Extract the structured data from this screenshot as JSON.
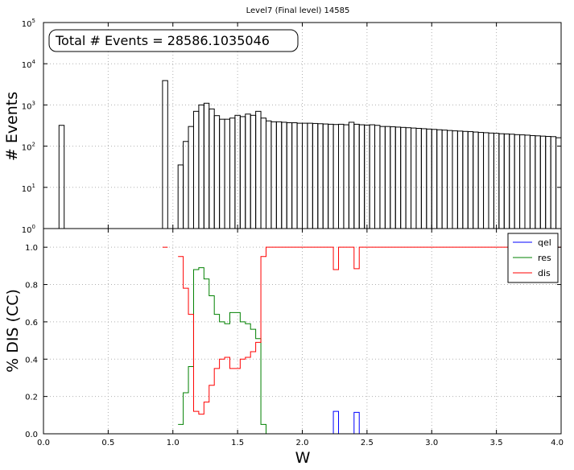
{
  "figure_title": "Level7 (Final level) 14585",
  "chart_data": [
    {
      "type": "histogram",
      "ylabel": "# Events",
      "yscale": "log",
      "ylim": [
        1,
        100000
      ],
      "xlim": [
        0,
        4
      ],
      "grid": true,
      "annotation": "Total # Events = 28586.1035046",
      "y_tick_labels": [
        {
          "base": "10",
          "exp": "0"
        },
        {
          "base": "10",
          "exp": "1"
        },
        {
          "base": "10",
          "exp": "2"
        },
        {
          "base": "10",
          "exp": "3"
        },
        {
          "base": "10",
          "exp": "4"
        },
        {
          "base": "10",
          "exp": "5"
        }
      ],
      "bin_width": 0.04,
      "bins": [
        [
          0.12,
          320
        ],
        [
          0.92,
          3900
        ],
        [
          1.04,
          35
        ],
        [
          1.08,
          130
        ],
        [
          1.12,
          300
        ],
        [
          1.16,
          700
        ],
        [
          1.2,
          1000
        ],
        [
          1.24,
          1100
        ],
        [
          1.28,
          800
        ],
        [
          1.32,
          550
        ],
        [
          1.36,
          450
        ],
        [
          1.4,
          450
        ],
        [
          1.44,
          480
        ],
        [
          1.48,
          560
        ],
        [
          1.52,
          520
        ],
        [
          1.56,
          600
        ],
        [
          1.6,
          560
        ],
        [
          1.64,
          700
        ],
        [
          1.68,
          480
        ],
        [
          1.72,
          410
        ],
        [
          1.76,
          390
        ],
        [
          1.8,
          390
        ],
        [
          1.84,
          380
        ],
        [
          1.88,
          370
        ],
        [
          1.92,
          370
        ],
        [
          1.96,
          360
        ],
        [
          2.0,
          360
        ],
        [
          2.04,
          360
        ],
        [
          2.08,
          355
        ],
        [
          2.12,
          350
        ],
        [
          2.16,
          345
        ],
        [
          2.2,
          340
        ],
        [
          2.24,
          335
        ],
        [
          2.28,
          340
        ],
        [
          2.32,
          330
        ],
        [
          2.36,
          380
        ],
        [
          2.4,
          340
        ],
        [
          2.44,
          330
        ],
        [
          2.48,
          325
        ],
        [
          2.52,
          330
        ],
        [
          2.56,
          320
        ],
        [
          2.6,
          300
        ],
        [
          2.64,
          300
        ],
        [
          2.68,
          295
        ],
        [
          2.72,
          290
        ],
        [
          2.76,
          285
        ],
        [
          2.8,
          280
        ],
        [
          2.84,
          275
        ],
        [
          2.88,
          270
        ],
        [
          2.92,
          265
        ],
        [
          2.96,
          260
        ],
        [
          3.0,
          255
        ],
        [
          3.04,
          250
        ],
        [
          3.08,
          245
        ],
        [
          3.12,
          240
        ],
        [
          3.16,
          235
        ],
        [
          3.2,
          232
        ],
        [
          3.24,
          228
        ],
        [
          3.28,
          225
        ],
        [
          3.32,
          220
        ],
        [
          3.36,
          215
        ],
        [
          3.4,
          212
        ],
        [
          3.44,
          208
        ],
        [
          3.48,
          205
        ],
        [
          3.52,
          200
        ],
        [
          3.56,
          198
        ],
        [
          3.6,
          195
        ],
        [
          3.64,
          190
        ],
        [
          3.68,
          188
        ],
        [
          3.72,
          185
        ],
        [
          3.76,
          180
        ],
        [
          3.8,
          178
        ],
        [
          3.84,
          175
        ],
        [
          3.88,
          172
        ],
        [
          3.92,
          170
        ],
        [
          3.96,
          160
        ]
      ]
    },
    {
      "type": "step",
      "xlabel": "W",
      "ylabel": "% DIS (CC)",
      "xlim": [
        0,
        4
      ],
      "ylim": [
        0,
        1.1
      ],
      "grid": true,
      "legend_position": "top-right",
      "x_tick_labels": [
        "0.0",
        "0.5",
        "1.0",
        "1.5",
        "2.0",
        "2.5",
        "3.0",
        "3.5",
        "4.0"
      ],
      "y_tick_labels": [
        "0.0",
        "0.2",
        "0.4",
        "0.6",
        "0.8",
        "1.0"
      ],
      "series": [
        {
          "name": "qel",
          "color": "#0000ff",
          "steps": [
            [
              2.24,
              2.28,
              0.12
            ],
            [
              2.4,
              2.44,
              0.115
            ]
          ]
        },
        {
          "name": "res",
          "color": "#008000",
          "steps": [
            [
              1.04,
              1.08,
              0.05
            ],
            [
              1.08,
              1.12,
              0.22
            ],
            [
              1.12,
              1.16,
              0.36
            ],
            [
              1.16,
              1.2,
              0.88
            ],
            [
              1.2,
              1.24,
              0.89
            ],
            [
              1.24,
              1.28,
              0.83
            ],
            [
              1.28,
              1.32,
              0.74
            ],
            [
              1.32,
              1.36,
              0.64
            ],
            [
              1.36,
              1.4,
              0.6
            ],
            [
              1.4,
              1.44,
              0.59
            ],
            [
              1.44,
              1.48,
              0.65
            ],
            [
              1.48,
              1.52,
              0.65
            ],
            [
              1.52,
              1.56,
              0.6
            ],
            [
              1.56,
              1.6,
              0.59
            ],
            [
              1.6,
              1.64,
              0.56
            ],
            [
              1.64,
              1.68,
              0.51
            ],
            [
              1.68,
              1.72,
              0.05
            ],
            [
              1.72,
              1.76,
              0.0
            ]
          ]
        },
        {
          "name": "dis",
          "color": "#ff0000",
          "steps": [
            [
              0.92,
              0.96,
              1.0
            ],
            [
              1.04,
              1.08,
              0.95
            ],
            [
              1.08,
              1.12,
              0.78
            ],
            [
              1.12,
              1.16,
              0.64
            ],
            [
              1.16,
              1.2,
              0.12
            ],
            [
              1.2,
              1.24,
              0.105
            ],
            [
              1.24,
              1.28,
              0.17
            ],
            [
              1.28,
              1.32,
              0.26
            ],
            [
              1.32,
              1.36,
              0.35
            ],
            [
              1.36,
              1.4,
              0.4
            ],
            [
              1.4,
              1.44,
              0.41
            ],
            [
              1.44,
              1.48,
              0.35
            ],
            [
              1.48,
              1.52,
              0.35
            ],
            [
              1.52,
              1.56,
              0.4
            ],
            [
              1.56,
              1.6,
              0.41
            ],
            [
              1.6,
              1.64,
              0.44
            ],
            [
              1.64,
              1.68,
              0.49
            ],
            [
              1.68,
              1.72,
              0.95
            ],
            [
              1.72,
              1.76,
              1.0
            ],
            [
              1.76,
              2.24,
              1.0
            ],
            [
              2.24,
              2.28,
              0.88
            ],
            [
              2.28,
              2.4,
              1.0
            ],
            [
              2.4,
              2.44,
              0.885
            ],
            [
              2.44,
              4.0,
              1.0
            ]
          ]
        }
      ]
    }
  ]
}
